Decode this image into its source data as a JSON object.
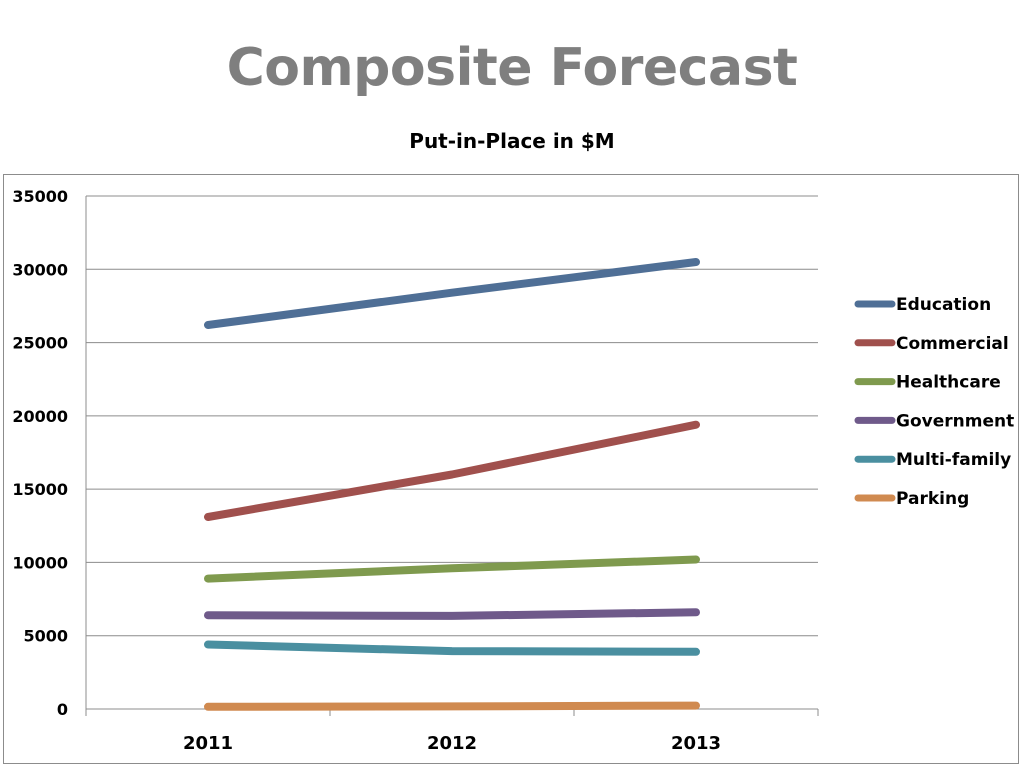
{
  "slide": {
    "title": "Composite Forecast"
  },
  "chart_data": {
    "type": "line",
    "title": "Put-in-Place in $M",
    "xlabel": "",
    "ylabel": "",
    "categories": [
      "2011",
      "2012",
      "2013"
    ],
    "ylim": [
      0,
      35000
    ],
    "yticks": [
      0,
      5000,
      10000,
      15000,
      20000,
      25000,
      30000,
      35000
    ],
    "grid": true,
    "legend_position": "right",
    "series": [
      {
        "name": "Education",
        "color": "#4f6f96",
        "values": [
          26200,
          28400,
          30500
        ]
      },
      {
        "name": "Commercial",
        "color": "#a0504d",
        "values": [
          13100,
          16000,
          19400
        ]
      },
      {
        "name": "Healthcare",
        "color": "#7f9a4e",
        "values": [
          8900,
          9600,
          10200
        ]
      },
      {
        "name": "Government",
        "color": "#6f5a8a",
        "values": [
          6400,
          6350,
          6600
        ]
      },
      {
        "name": "Multi-family",
        "color": "#4a8fa0",
        "values": [
          4400,
          3950,
          3900
        ]
      },
      {
        "name": "Parking",
        "color": "#d08a50",
        "values": [
          150,
          180,
          230
        ]
      }
    ]
  }
}
